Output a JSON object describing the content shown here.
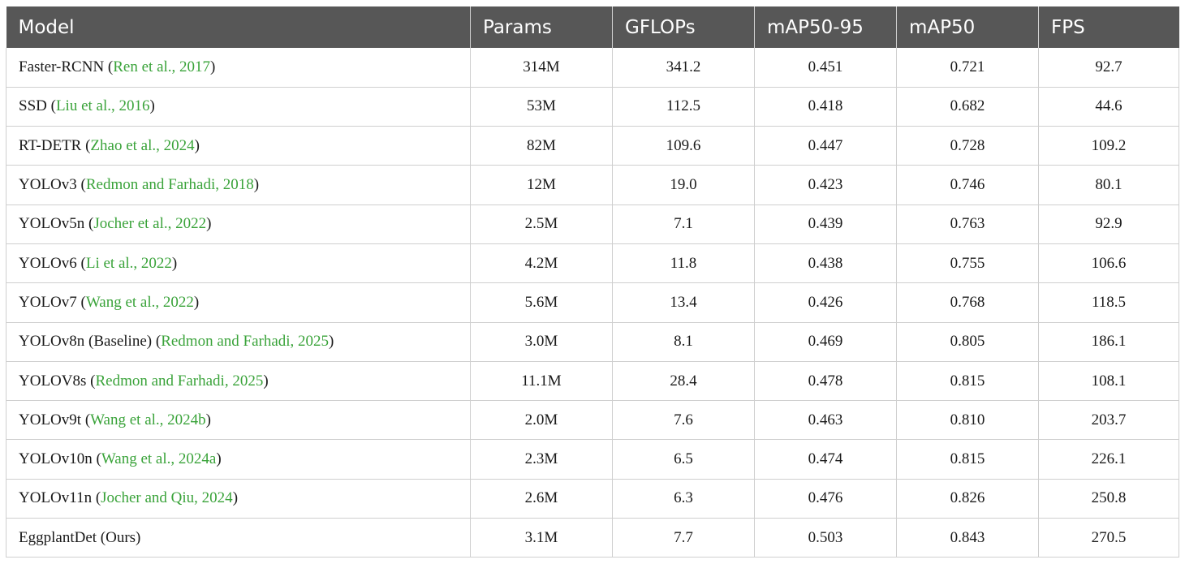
{
  "table": {
    "headers": [
      "Model",
      "Params",
      "GFLOPs",
      "mAP50-95",
      "mAP50",
      "FPS"
    ],
    "rows": [
      {
        "model": "Faster-RCNN",
        "cite": "Ren et al., 2017",
        "params": "314M",
        "gflops": "341.2",
        "map5095": "0.451",
        "map50": "0.721",
        "fps": "92.7"
      },
      {
        "model": "SSD",
        "cite": "Liu et al., 2016",
        "params": "53M",
        "gflops": "112.5",
        "map5095": "0.418",
        "map50": "0.682",
        "fps": "44.6"
      },
      {
        "model": "RT-DETR",
        "cite": "Zhao et al., 2024",
        "params": "82M",
        "gflops": "109.6",
        "map5095": "0.447",
        "map50": "0.728",
        "fps": "109.2"
      },
      {
        "model": "YOLOv3",
        "cite": "Redmon and Farhadi, 2018",
        "params": "12M",
        "gflops": "19.0",
        "map5095": "0.423",
        "map50": "0.746",
        "fps": "80.1"
      },
      {
        "model": "YOLOv5n",
        "cite": "Jocher et al., 2022",
        "params": "2.5M",
        "gflops": "7.1",
        "map5095": "0.439",
        "map50": "0.763",
        "fps": "92.9"
      },
      {
        "model": "YOLOv6",
        "cite": "Li et al., 2022",
        "params": "4.2M",
        "gflops": "11.8",
        "map5095": "0.438",
        "map50": "0.755",
        "fps": "106.6"
      },
      {
        "model": "YOLOv7",
        "cite": "Wang et al., 2022",
        "params": "5.6M",
        "gflops": "13.4",
        "map5095": "0.426",
        "map50": "0.768",
        "fps": "118.5"
      },
      {
        "model": "YOLOv8n (Baseline)",
        "cite": "Redmon and Farhadi, 2025",
        "params": "3.0M",
        "gflops": "8.1",
        "map5095": "0.469",
        "map50": "0.805",
        "fps": "186.1"
      },
      {
        "model": "YOLOV8s",
        "cite": "Redmon and Farhadi, 2025",
        "params": "11.1M",
        "gflops": "28.4",
        "map5095": "0.478",
        "map50": "0.815",
        "fps": "108.1"
      },
      {
        "model": "YOLOv9t",
        "cite": "Wang et al., 2024b",
        "params": "2.0M",
        "gflops": "7.6",
        "map5095": "0.463",
        "map50": "0.810",
        "fps": "203.7"
      },
      {
        "model": "YOLOv10n",
        "cite": "Wang et al., 2024a",
        "params": "2.3M",
        "gflops": "6.5",
        "map5095": "0.474",
        "map50": "0.815",
        "fps": "226.1"
      },
      {
        "model": "YOLOv11n",
        "cite": "Jocher and Qiu, 2024",
        "params": "2.6M",
        "gflops": "6.3",
        "map5095": "0.476",
        "map50": "0.826",
        "fps": "250.8"
      },
      {
        "model": "EggplantDet (Ours)",
        "cite": "",
        "params": "3.1M",
        "gflops": "7.7",
        "map5095": "0.503",
        "map50": "0.843",
        "fps": "270.5"
      }
    ]
  },
  "colors": {
    "header_bg": "#575757",
    "header_text": "#ffffff",
    "citation": "#3aa33a",
    "border": "#cfcfcf"
  }
}
